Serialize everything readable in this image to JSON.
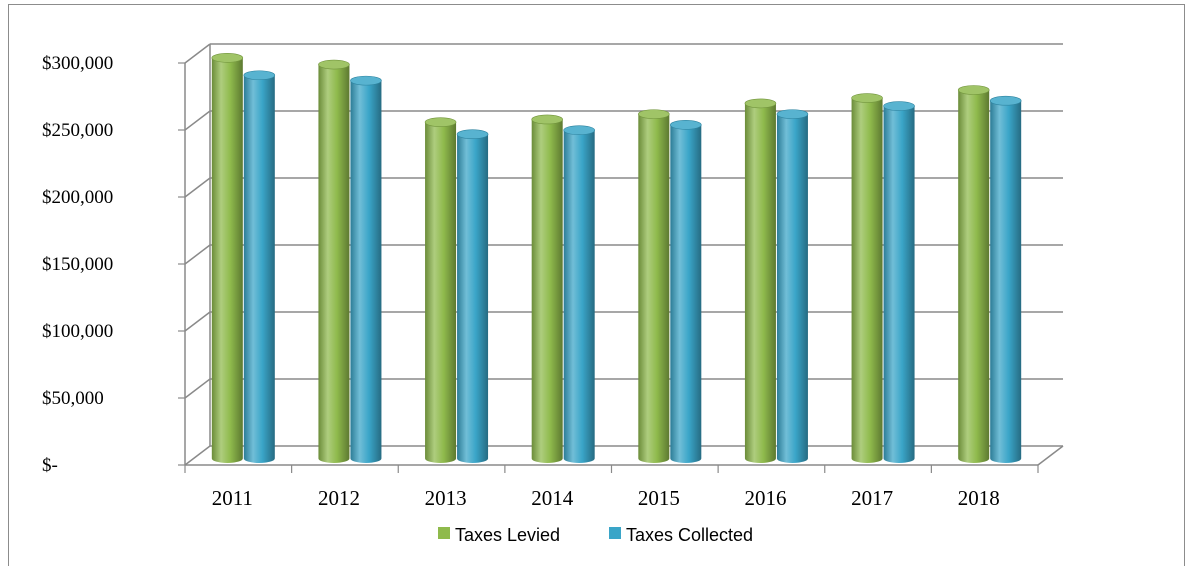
{
  "chart_data": {
    "type": "bar",
    "style": "3d-cylinder",
    "title": "",
    "xlabel": "",
    "ylabel": "",
    "categories": [
      "2011",
      "2012",
      "2013",
      "2014",
      "2015",
      "2016",
      "2017",
      "2018"
    ],
    "series": [
      {
        "name": "Taxes Levied",
        "color": "#8fba4c",
        "values": [
          299000,
          294000,
          251000,
          253000,
          257000,
          265000,
          269000,
          275000
        ]
      },
      {
        "name": "Taxes Collected",
        "color": "#3aa5c8",
        "values": [
          286000,
          282000,
          242000,
          245000,
          249000,
          257000,
          263000,
          267000
        ]
      }
    ],
    "ylim": [
      0,
      300000
    ],
    "yticks": [
      0,
      50000,
      100000,
      150000,
      200000,
      250000,
      300000
    ],
    "ytick_labels": [
      "$-",
      "$50,000",
      "$100,000",
      "$150,000",
      "$200,000",
      "$250,000",
      "$300,000"
    ],
    "grid": true,
    "legend_position": "bottom"
  }
}
